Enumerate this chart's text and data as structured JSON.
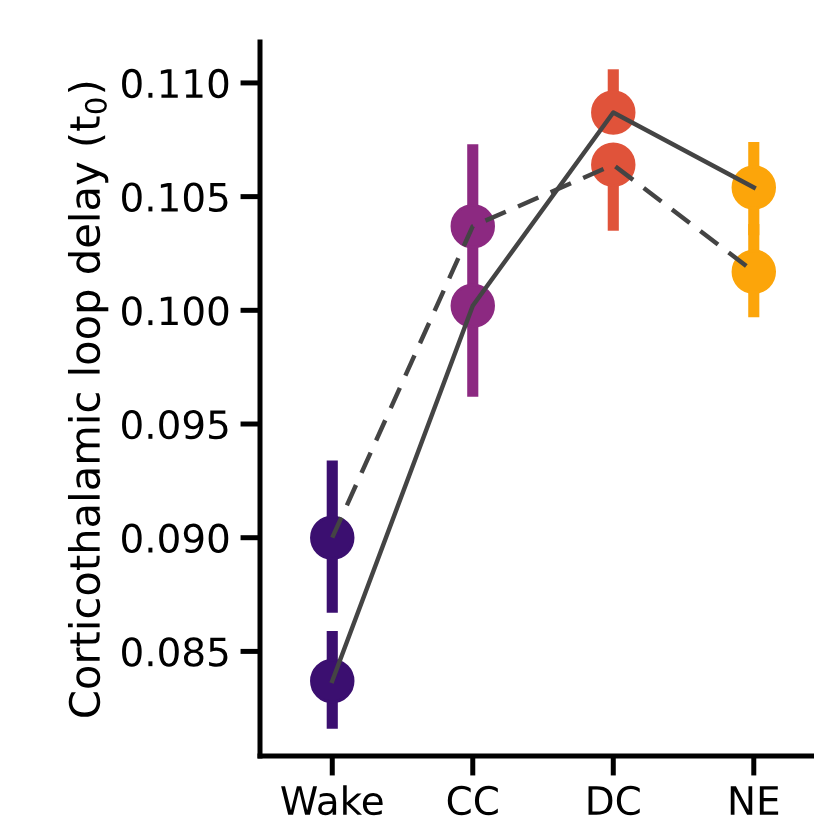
{
  "chart_data": {
    "type": "line",
    "ylabel": "Corticothalamic loop delay (t$_{0}$)",
    "categories": [
      "Wake",
      "CC",
      "DC",
      "NE"
    ],
    "series": [
      {
        "color": "#444444",
        "line_style": "solid",
        "colors": [
          "#3b0f70",
          "#8c2981",
          "#e0533a",
          "#fca50a"
        ],
        "values": [
          0.0837,
          0.1002,
          0.1087,
          0.1054
        ],
        "errors": [
          [
            0.0816,
            0.0859
          ],
          [
            0.0962,
            0.1002
          ],
          [
            0.1087,
            0.1106
          ],
          [
            0.1033,
            0.1074
          ]
        ]
      },
      {
        "color": "#444444",
        "line_style": "dashed",
        "colors": [
          "#3b0f70",
          "#8c2981",
          "#e0533a",
          "#fca50a"
        ],
        "values": [
          0.09,
          0.1037,
          0.1064,
          0.1017
        ],
        "errors": [
          [
            0.0867,
            0.0934
          ],
          [
            0.1002,
            0.1073
          ],
          [
            0.1035,
            0.1066
          ],
          [
            0.0997,
            0.1038
          ]
        ]
      }
    ],
    "marker": "circle",
    "ylim": [
      0.0804,
      0.1118
    ],
    "yticks": [
      {
        "value": 0.085,
        "label": "0.085"
      },
      {
        "value": 0.09,
        "label": "0.090"
      },
      {
        "value": 0.095,
        "label": "0.095"
      },
      {
        "value": 0.1,
        "label": "0.100"
      },
      {
        "value": 0.105,
        "label": "0.105"
      },
      {
        "value": 0.11,
        "label": "0.110"
      }
    ],
    "grid": false,
    "legend": false
  }
}
